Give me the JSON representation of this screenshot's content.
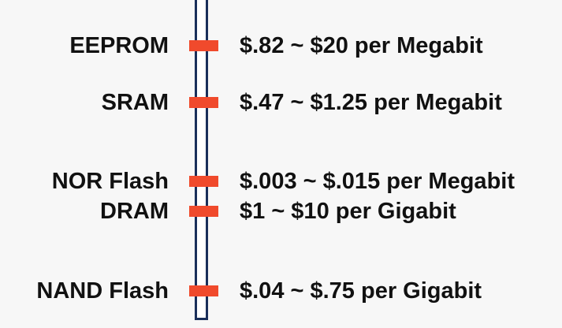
{
  "colors": {
    "background": "#f7f7f7",
    "bar_border": "#1a2f5a",
    "marker": "#f04a2c",
    "text": "#111111"
  },
  "memories": [
    {
      "name": "EEPROM",
      "price": "$.82 ~ $20 per Megabit"
    },
    {
      "name": "SRAM",
      "price": "$.47 ~ $1.25 per Megabit"
    },
    {
      "name": "NOR Flash",
      "price": "$.003 ~ $.015 per Megabit"
    },
    {
      "name": "DRAM",
      "price": "$1 ~ $10 per Gigabit"
    },
    {
      "name": "NAND Flash",
      "price": "$.04 ~ $.75 per Gigabit"
    }
  ]
}
